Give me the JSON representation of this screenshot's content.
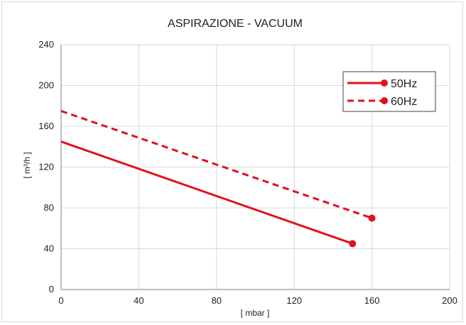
{
  "chart_data": {
    "type": "line",
    "title": "ASPIRAZIONE - VACUUM",
    "xlabel": "[ mbar ]",
    "ylabel": "[ m³/h ]",
    "xlim": [
      0,
      200
    ],
    "ylim": [
      0,
      240
    ],
    "xticks": [
      0,
      40,
      80,
      120,
      160,
      200
    ],
    "yticks": [
      0,
      40,
      80,
      120,
      160,
      200,
      240
    ],
    "grid": true,
    "legend_position": "top-right",
    "series": [
      {
        "name": "50Hz",
        "style": "solid",
        "color": "#e0101f",
        "points": [
          [
            0,
            145
          ],
          [
            150,
            45
          ]
        ]
      },
      {
        "name": "60Hz",
        "style": "dashed",
        "color": "#e0101f",
        "points": [
          [
            0,
            175
          ],
          [
            160,
            70
          ]
        ]
      }
    ]
  }
}
